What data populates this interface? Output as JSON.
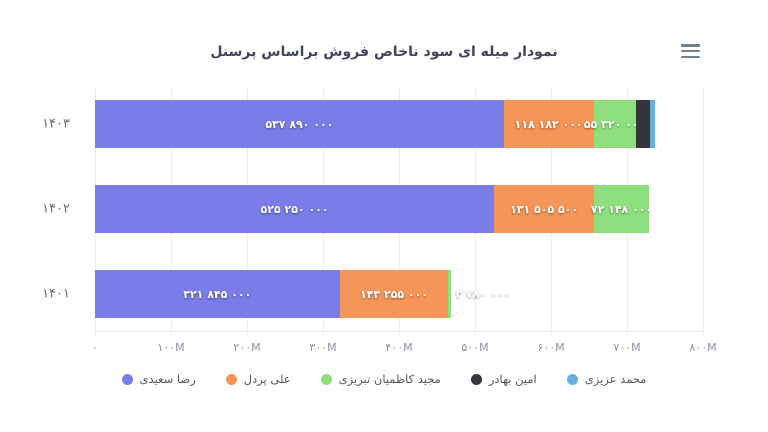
{
  "header": {
    "title": "نمودار میله ای سود ناخاص فروش براساس پرسنل",
    "menu_icon": "hamburger-menu-icon"
  },
  "colors": {
    "purple": "#7a7ce8",
    "orange": "#f69558",
    "green": "#8ee07e",
    "dark": "#35353b",
    "blue": "#64aee4",
    "grid": "#ededf2",
    "axis_text": "#8e8ea3",
    "category_text": "#6b6b80",
    "title_text": "#43455c",
    "legend_text": "#565661"
  },
  "chart_data": {
    "type": "bar",
    "subtype": "horizontal-stacked",
    "title": "نمودار میله ای سود ناخاص فروش براساس پرسنل",
    "categories": [
      "۱۴۰۳",
      "۱۴۰۲",
      "۱۴۰۱"
    ],
    "series": [
      {
        "name": "رضا سعیدی",
        "color": "#7a7ce8",
        "values": [
          537890000,
          525250000,
          321845000
        ],
        "labels": [
          "۵۳۷ ۸۹۰ ۰۰۰",
          "۵۲۵ ۲۵۰ ۰۰۰",
          "۳۲۱ ۸۴۵ ۰۰۰"
        ]
      },
      {
        "name": "علی پردل",
        "color": "#f69558",
        "values": [
          118182000,
          131505500,
          143255000
        ],
        "labels": [
          "۱۱۸ ۱۸۲ ۰۰۰",
          "۱۳۱ ۵۰۵ ۵۰۰",
          "۱۴۳ ۲۵۵ ۰۰۰"
        ]
      },
      {
        "name": "مجید کاظمیان تبریزی",
        "color": "#8ee07e",
        "values": [
          55320000,
          72148000,
          3780000
        ],
        "labels": [
          "۵۵ ۳۲۰ ۰۰۰",
          "۷۲ ۱۴۸ ۰۰۰",
          "۳ ۷۸۰ ۰۰۰"
        ]
      },
      {
        "name": "امین بهادر",
        "color": "#35353b",
        "values": [
          19000000,
          0,
          0
        ],
        "labels": [
          "",
          "",
          ""
        ]
      },
      {
        "name": "محمد عزیزی",
        "color": "#64aee4",
        "values": [
          7000000,
          0,
          0
        ],
        "labels": [
          "",
          "",
          ""
        ]
      }
    ],
    "x_ticks": [
      "۰",
      "۱۰۰M",
      "۲۰۰M",
      "۳۰۰M",
      "۴۰۰M",
      "۵۰۰M",
      "۶۰۰M",
      "۷۰۰M",
      "۸۰۰M"
    ],
    "xlim": [
      0,
      800000000
    ],
    "grid": "vertical",
    "legend_position": "bottom"
  }
}
